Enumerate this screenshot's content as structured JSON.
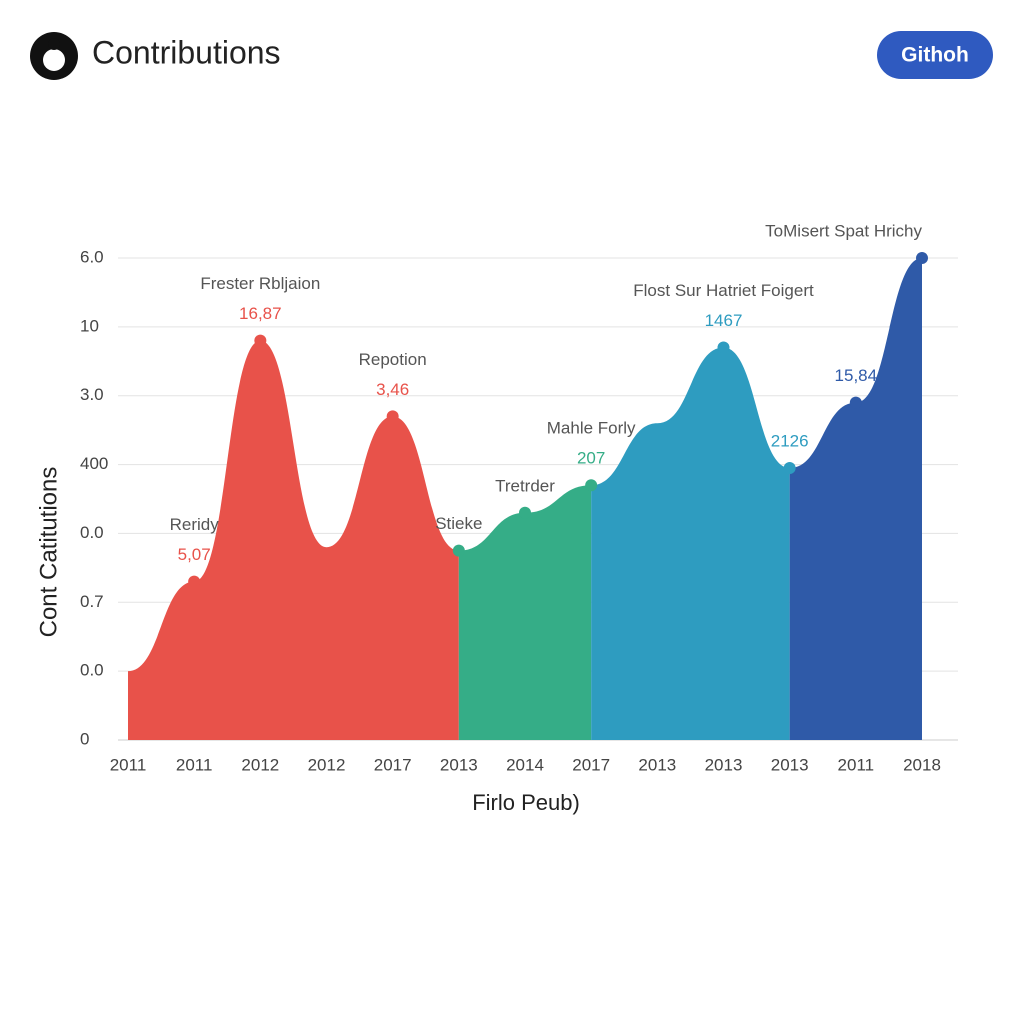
{
  "header": {
    "title": "Contributions",
    "button": "Githoh"
  },
  "chart_data": {
    "type": "area",
    "y_label": "Cont Catitutions",
    "x_label": "Firlo Peub)",
    "categories": [
      "2011",
      "2011",
      "2012",
      "2012",
      "2017",
      "2013",
      "2014",
      "2017",
      "2013",
      "2013",
      "2013",
      "2011",
      "2018"
    ],
    "ylim": [
      0,
      7
    ],
    "yticks": [
      0,
      {
        "value": 1,
        "label": "0.0"
      },
      {
        "value": 2,
        "label": "0.7"
      },
      {
        "value": 3,
        "label": "0.0"
      },
      {
        "value": 4,
        "label": "400"
      },
      {
        "value": 5,
        "label": "3.0"
      },
      {
        "value": 6,
        "label": "10"
      },
      {
        "value": 7,
        "label": "6.0"
      }
    ],
    "grid": true,
    "series": [
      {
        "color": "#e8524a",
        "values": [
          1.0,
          2.3,
          5.8,
          2.8,
          4.7,
          2.75,
          null,
          null,
          null,
          null,
          null,
          null,
          null
        ],
        "point_titles": [
          null,
          "Reridy",
          "Frester Rbljaion",
          null,
          "Repotion",
          null,
          null,
          null,
          null,
          null,
          null,
          null,
          null
        ],
        "point_numbers": [
          null,
          "5,07",
          "16,87",
          null,
          "3,46",
          null,
          null,
          null,
          null,
          null,
          null,
          null,
          null
        ]
      },
      {
        "color": "#35ad87",
        "values": [
          null,
          null,
          null,
          null,
          null,
          2.75,
          3.3,
          3.7,
          null,
          null,
          null,
          null,
          null
        ],
        "point_titles": [
          null,
          null,
          null,
          null,
          null,
          "Stieke",
          "Tretrder",
          "Mahle Forly",
          null,
          null,
          null,
          null,
          null
        ],
        "point_numbers": [
          null,
          null,
          null,
          null,
          null,
          null,
          null,
          "207",
          null,
          null,
          null,
          null,
          null
        ]
      },
      {
        "color": "#2e9cc0",
        "values": [
          null,
          null,
          null,
          null,
          null,
          null,
          null,
          3.7,
          4.6,
          5.7,
          3.95,
          null,
          null
        ],
        "point_titles": [
          null,
          null,
          null,
          null,
          null,
          null,
          null,
          null,
          null,
          "Flost Sur Hatriet Foigert",
          null,
          null,
          null
        ],
        "point_numbers": [
          null,
          null,
          null,
          null,
          null,
          null,
          null,
          null,
          null,
          "1467",
          "2126",
          null,
          null
        ]
      },
      {
        "color": "#2f5aa8",
        "values": [
          null,
          null,
          null,
          null,
          null,
          null,
          null,
          null,
          null,
          null,
          3.95,
          4.9,
          7.0
        ],
        "point_titles": [
          null,
          null,
          null,
          null,
          null,
          null,
          null,
          null,
          null,
          null,
          null,
          null,
          "ToMisert Spat Hrichy"
        ],
        "point_numbers": [
          null,
          null,
          null,
          null,
          null,
          null,
          null,
          null,
          null,
          null,
          null,
          "15,84",
          null
        ]
      }
    ]
  }
}
